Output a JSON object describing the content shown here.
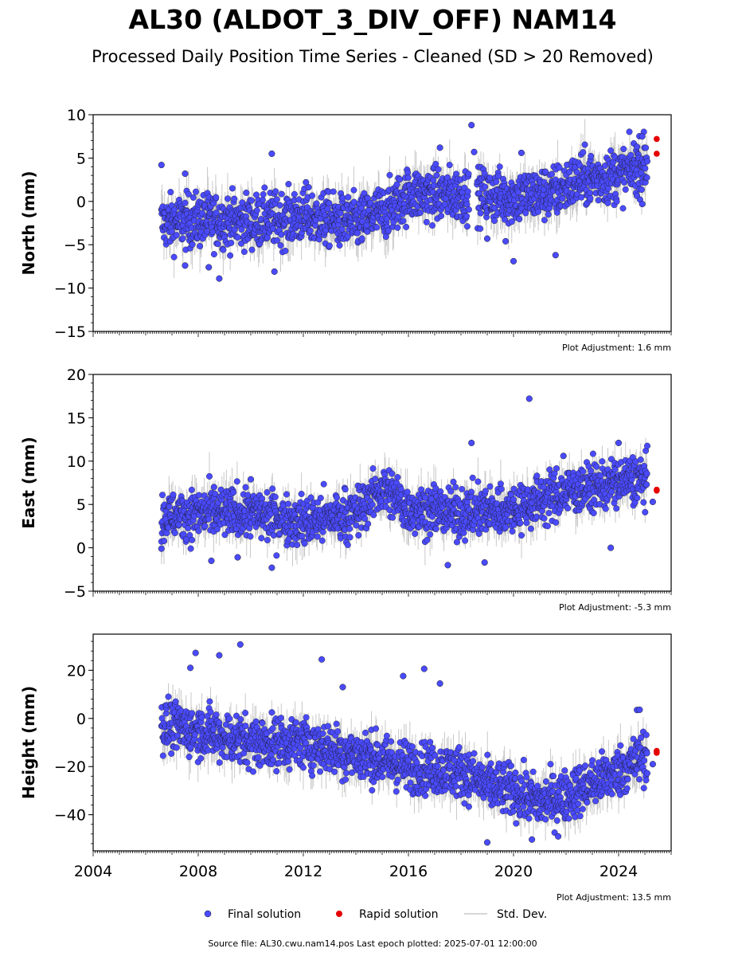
{
  "title": "AL30 (ALDOT_3_DIV_OFF) NAM14",
  "subtitle": "Processed Daily Position Time Series - Cleaned (SD > 20 Removed)",
  "footer": "Source file: AL30.cwu.nam14.pos  Last epoch plotted: 2025-07-01 12:00:00",
  "legend": {
    "final": "Final solution",
    "rapid": "Rapid solution",
    "std": "Std. Dev."
  },
  "colors": {
    "final": "#4a4aff",
    "rapid": "#e60000",
    "std": "#c8c8c8",
    "edge": "#1a1a1a"
  },
  "chart_data": [
    {
      "type": "scatter",
      "ylabel": "North (mm)",
      "xlim": [
        2004,
        2026
      ],
      "ylim": [
        -15,
        10
      ],
      "yticks": [
        "10",
        "5",
        "0",
        "−5",
        "−10",
        "−15"
      ],
      "xticks": [],
      "note": "Plot Adjustment: 1.6 mm",
      "trend": [
        [
          2006.6,
          -2.5
        ],
        [
          2008,
          -2.2
        ],
        [
          2010,
          -2.3
        ],
        [
          2012,
          -1.8
        ],
        [
          2014,
          -2.5
        ],
        [
          2015.2,
          -1.0
        ],
        [
          2016,
          0.8
        ],
        [
          2018,
          0.8
        ],
        [
          2020,
          0.5
        ],
        [
          2021.5,
          1.0
        ],
        [
          2022.5,
          2.5
        ],
        [
          2024,
          3.0
        ],
        [
          2025.1,
          4.5
        ]
      ],
      "spread": 2.2,
      "outliers": [
        [
          2006.6,
          4.2
        ],
        [
          2007.5,
          3.2
        ],
        [
          2010.8,
          5.5
        ],
        [
          2012.1,
          2.2
        ],
        [
          2017.2,
          6.2
        ],
        [
          2018.4,
          8.8
        ],
        [
          2018.5,
          5.7
        ],
        [
          2020.3,
          5.6
        ],
        [
          2024.9,
          7.5
        ],
        [
          2024.7,
          6.3
        ],
        [
          2008.8,
          -8.9
        ],
        [
          2010.9,
          -8.1
        ],
        [
          2008.4,
          -7.6
        ],
        [
          2007.5,
          -7.4
        ],
        [
          2020.0,
          -6.9
        ],
        [
          2021.6,
          -6.2
        ],
        [
          2019.0,
          -4.3
        ],
        [
          2019.7,
          -4.6
        ],
        [
          2024.9,
          -0.3
        ]
      ],
      "rapid": [
        [
          2025.45,
          7.2
        ],
        [
          2025.45,
          5.5
        ]
      ]
    },
    {
      "type": "scatter",
      "ylabel": "East (mm)",
      "xlim": [
        2004,
        2026
      ],
      "ylim": [
        -5,
        20
      ],
      "yticks": [
        "20",
        "15",
        "10",
        "5",
        "0",
        "−5"
      ],
      "xticks": [],
      "note": "Plot Adjustment: -5.3 mm",
      "trend": [
        [
          2006.6,
          3.5
        ],
        [
          2008,
          4.0
        ],
        [
          2010,
          4.0
        ],
        [
          2012,
          3.0
        ],
        [
          2014,
          4.0
        ],
        [
          2015.0,
          7.0
        ],
        [
          2016,
          4.5
        ],
        [
          2018,
          4.0
        ],
        [
          2020,
          4.5
        ],
        [
          2021,
          5.5
        ],
        [
          2022,
          6.5
        ],
        [
          2024,
          7.5
        ],
        [
          2025.1,
          8.0
        ]
      ],
      "spread": 2.0,
      "outliers": [
        [
          2020.6,
          17.2
        ],
        [
          2018.4,
          12.1
        ],
        [
          2024.0,
          12.1
        ],
        [
          2021.9,
          10.6
        ],
        [
          2010.0,
          7.9
        ],
        [
          2008.6,
          7.0
        ],
        [
          2010.8,
          -2.3
        ],
        [
          2008.5,
          -1.5
        ],
        [
          2017.5,
          -2.0
        ],
        [
          2018.9,
          -1.7
        ],
        [
          2023.7,
          0.0
        ],
        [
          2025.3,
          5.3
        ],
        [
          2009.5,
          -1.1
        ],
        [
          2006.6,
          -0.1
        ]
      ],
      "rapid": [
        [
          2025.45,
          6.7
        ],
        [
          2025.45,
          6.6
        ]
      ]
    },
    {
      "type": "scatter",
      "ylabel": "Height (mm)",
      "xlim": [
        2004,
        2026
      ],
      "ylim": [
        -55,
        35
      ],
      "yticks": [
        "20",
        "0",
        "−20",
        "−40"
      ],
      "ytick_values": [
        20,
        0,
        -20,
        -40
      ],
      "xticks": [
        "2004",
        "2008",
        "2012",
        "2016",
        "2020",
        "2024"
      ],
      "note": "Plot Adjustment: 13.5 mm",
      "trend": [
        [
          2006.6,
          -3
        ],
        [
          2008,
          -5
        ],
        [
          2010,
          -10
        ],
        [
          2012,
          -10
        ],
        [
          2014,
          -15
        ],
        [
          2016,
          -20
        ],
        [
          2018,
          -22
        ],
        [
          2019,
          -28
        ],
        [
          2020,
          -30
        ],
        [
          2021,
          -35
        ],
        [
          2022,
          -32
        ],
        [
          2023,
          -27
        ],
        [
          2024,
          -22
        ],
        [
          2025.1,
          -15
        ]
      ],
      "spread": 7.5,
      "outliers": [
        [
          2009.6,
          30.7
        ],
        [
          2007.9,
          27.2
        ],
        [
          2008.8,
          26.2
        ],
        [
          2012.7,
          24.5
        ],
        [
          2016.6,
          20.6
        ],
        [
          2007.7,
          21.0
        ],
        [
          2015.8,
          17.6
        ],
        [
          2024.7,
          3.5
        ],
        [
          2024.8,
          3.6
        ],
        [
          2019.0,
          -51.5
        ],
        [
          2020.7,
          -50.3
        ],
        [
          2021.7,
          -49.0
        ],
        [
          2025.3,
          -19.0
        ],
        [
          2013.5,
          13.0
        ],
        [
          2017.2,
          14.5
        ]
      ],
      "rapid": [
        [
          2025.45,
          -13.5
        ],
        [
          2025.45,
          -14.3
        ]
      ]
    }
  ]
}
